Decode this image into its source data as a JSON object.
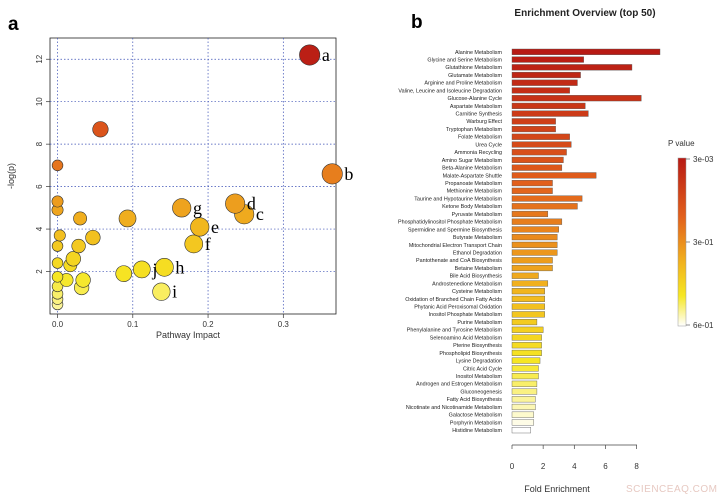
{
  "figure": {
    "panel_a_letter": "a",
    "panel_b_letter": "b",
    "watermark": "SCIENCEAQ.COM"
  },
  "colors": {
    "high_significance": "#b81a14",
    "mid": "#e8781c",
    "low": "#f4e21e",
    "lowest": "#ffffff",
    "grid": "#3a4fb5"
  },
  "chart_data": [
    {
      "type": "scatter",
      "panel": "a",
      "title": "",
      "xlabel": "Pathway Impact",
      "ylabel": "-log(p)",
      "xlim": [
        -0.01,
        0.37
      ],
      "ylim": [
        0,
        13
      ],
      "xticks": [
        "0.0",
        "0.1",
        "0.2",
        "0.3"
      ],
      "xtick_values": [
        0,
        0.1,
        0.2,
        0.3
      ],
      "yticks": [
        "2",
        "4",
        "6",
        "8",
        "10",
        "12"
      ],
      "ytick_values": [
        2,
        4,
        6,
        8,
        10,
        12
      ],
      "grid": true,
      "points": [
        {
          "x": 0.335,
          "y": 12.2,
          "size": 3.0,
          "label": "a"
        },
        {
          "x": 0.365,
          "y": 6.6,
          "size": 3.0,
          "label": "b"
        },
        {
          "x": 0.057,
          "y": 8.7,
          "size": 2.0,
          "label": ""
        },
        {
          "x": 0.236,
          "y": 5.2,
          "size": 2.8,
          "label": "d"
        },
        {
          "x": 0.248,
          "y": 4.7,
          "size": 2.8,
          "label": "c"
        },
        {
          "x": 0.165,
          "y": 5.0,
          "size": 2.6,
          "label": "g"
        },
        {
          "x": 0.189,
          "y": 4.1,
          "size": 2.6,
          "label": "e"
        },
        {
          "x": 0.181,
          "y": 3.3,
          "size": 2.5,
          "label": "f"
        },
        {
          "x": 0.142,
          "y": 2.2,
          "size": 2.5,
          "label": "h"
        },
        {
          "x": 0.112,
          "y": 2.1,
          "size": 2.3,
          "label": "j"
        },
        {
          "x": 0.138,
          "y": 1.05,
          "size": 2.4,
          "label": "i"
        },
        {
          "x": 0.093,
          "y": 4.5,
          "size": 2.3,
          "label": ""
        },
        {
          "x": 0.088,
          "y": 1.9,
          "size": 2.1,
          "label": ""
        },
        {
          "x": 0.0,
          "y": 7.0,
          "size": 1.0,
          "label": ""
        },
        {
          "x": 0.0,
          "y": 5.3,
          "size": 1.1,
          "label": ""
        },
        {
          "x": 0.0,
          "y": 4.9,
          "size": 1.1,
          "label": ""
        },
        {
          "x": 0.03,
          "y": 4.5,
          "size": 1.5,
          "label": ""
        },
        {
          "x": 0.047,
          "y": 3.6,
          "size": 1.8,
          "label": ""
        },
        {
          "x": 0.003,
          "y": 3.7,
          "size": 1.1,
          "label": ""
        },
        {
          "x": 0.0,
          "y": 3.2,
          "size": 1.0,
          "label": ""
        },
        {
          "x": 0.028,
          "y": 3.2,
          "size": 1.6,
          "label": ""
        },
        {
          "x": 0.021,
          "y": 2.6,
          "size": 1.8,
          "label": ""
        },
        {
          "x": 0.017,
          "y": 2.3,
          "size": 1.5,
          "label": ""
        },
        {
          "x": 0.0,
          "y": 2.4,
          "size": 1.0,
          "label": ""
        },
        {
          "x": 0.012,
          "y": 1.6,
          "size": 1.5,
          "label": ""
        },
        {
          "x": 0.034,
          "y": 1.6,
          "size": 1.8,
          "label": ""
        },
        {
          "x": 0.032,
          "y": 1.25,
          "size": 1.8,
          "label": ""
        },
        {
          "x": 0.0,
          "y": 1.75,
          "size": 1.0,
          "label": ""
        },
        {
          "x": 0.0,
          "y": 1.3,
          "size": 1.0,
          "label": ""
        },
        {
          "x": 0.0,
          "y": 0.95,
          "size": 1.0,
          "label": ""
        },
        {
          "x": 0.0,
          "y": 0.7,
          "size": 1.0,
          "label": ""
        },
        {
          "x": 0.0,
          "y": 0.45,
          "size": 1.0,
          "label": ""
        }
      ]
    },
    {
      "type": "bar",
      "panel": "b",
      "orientation": "horizontal",
      "title": "Enrichment Overview (top 50)",
      "xlabel": "Fold Enrichment",
      "ylabel": "",
      "xlim": [
        0,
        9.5
      ],
      "xticks": [
        "0",
        "2",
        "4",
        "6",
        "8"
      ],
      "xtick_values": [
        0,
        2,
        4,
        6,
        8
      ],
      "legend": {
        "title": "P value",
        "labels": [
          "3e-03",
          "3e-01",
          "6e-01"
        ],
        "placement": "right"
      },
      "categories": [
        "Alanine Metabolism",
        "Glycine and Serine Metabolism",
        "Glutathione Metabolism",
        "Glutamate Metabolism",
        "Arginine and Proline Metabolism",
        "Valine, Leucine and Isoleucine Degradation",
        "Glucose-Alanine Cycle",
        "Aspartate Metabolism",
        "Carnitine Synthesis",
        "Warburg Effect",
        "Tryptophan Metabolism",
        "Folate Metabolism",
        "Urea Cycle",
        "Ammonia Recycling",
        "Amino Sugar Metabolism",
        "Beta-Alanine Metabolism",
        "Malate-Aspartate Shuttle",
        "Propanoate Metabolism",
        "Methionine Metabolism",
        "Taurine and Hypotaurine Metabolism",
        "Ketone Body Metabolism",
        "Pyruvate Metabolism",
        "Phosphatidylinositol Phosphate Metabolism",
        "Spermidine and Spermine Biosynthesis",
        "Butyrate Metabolism",
        "Mitochondrial Electron Transport Chain",
        "Ethanol Degradation",
        "Pantothenate and CoA Biosynthesis",
        "Betaine Metabolism",
        "Bile Acid Biosynthesis",
        "Androstenedione Metabolism",
        "Cysteine Metabolism",
        "Oxidation of Branched Chain Fatty Acids",
        "Phytanic Acid Peroxisomal Oxidation",
        "Inositol Phosphate Metabolism",
        "Purine Metabolism",
        "Phenylalanine and Tyrosine Metabolism",
        "Selenoamino Acid Metabolism",
        "Pterine Biosynthesis",
        "Phospholipid Biosynthesis",
        "Lysine Degradation",
        "Citric Acid Cycle",
        "Inositol Metabolism",
        "Androgen and Estrogen Metabolism",
        "Gluconeogenesis",
        "Fatty Acid Biosynthesis",
        "Nicotinate and Nicotinamide Metabolism",
        "Galactose Metabolism",
        "Porphyrin Metabolism",
        "Histidine Metabolism"
      ],
      "values": [
        9.5,
        4.6,
        7.7,
        4.4,
        4.2,
        3.7,
        8.3,
        4.7,
        4.9,
        2.8,
        2.8,
        3.7,
        3.8,
        3.5,
        3.3,
        3.2,
        5.4,
        2.6,
        2.6,
        4.5,
        4.2,
        2.3,
        3.2,
        3.0,
        2.9,
        2.9,
        2.9,
        2.6,
        2.6,
        1.7,
        2.3,
        2.1,
        2.1,
        2.1,
        2.1,
        1.6,
        2.0,
        1.9,
        1.9,
        1.9,
        1.8,
        1.7,
        1.7,
        1.6,
        1.6,
        1.5,
        1.5,
        1.4,
        1.4,
        1.2
      ]
    }
  ]
}
